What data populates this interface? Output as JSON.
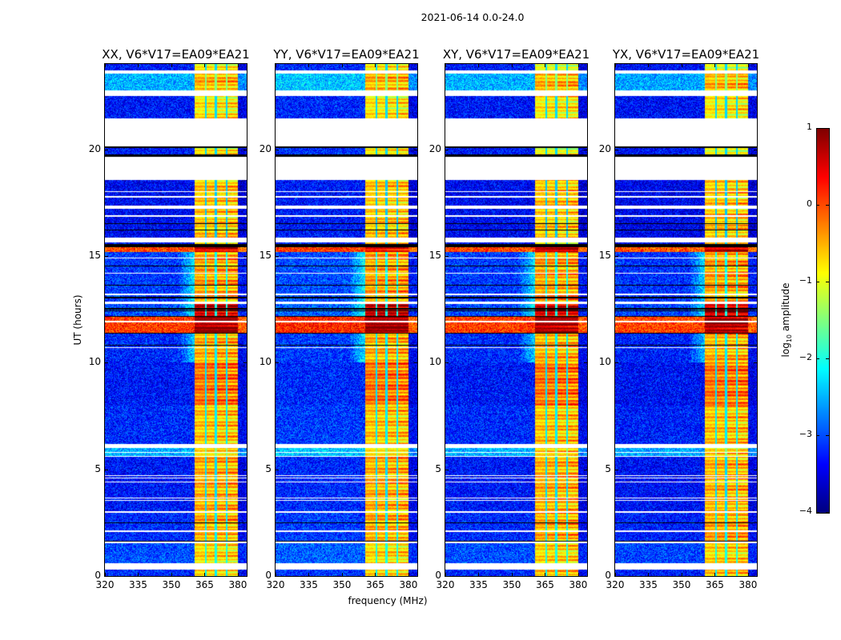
{
  "figure": {
    "suptitle": "2021-06-14 0.0-24.0",
    "ylabel": "UT (hours)",
    "xlabel": "frequency (MHz)",
    "colorbar_label_prefix": "log",
    "colorbar_label_sub": "10",
    "colorbar_label_suffix": " amplitude"
  },
  "chart_data": {
    "type": "heatmap",
    "colormap": "jet",
    "clim": [
      -4,
      1
    ],
    "colorbar_ticks": [
      "1",
      "0",
      "−1",
      "−2",
      "−3",
      "−4"
    ],
    "colorbar_tick_values": [
      1,
      0,
      -1,
      -2,
      -3,
      -4
    ],
    "xlim": [
      320,
      384
    ],
    "ylim": [
      0,
      24
    ],
    "x_ticks": [
      320,
      335,
      350,
      365,
      380
    ],
    "y_ticks": [
      0,
      5,
      10,
      15,
      20
    ],
    "panels": [
      {
        "title": "XX, V6*V17=EA09*EA21",
        "seed": 11,
        "bg_offset": 0.0
      },
      {
        "title": "YY, V6*V17=EA09*EA21",
        "seed": 23,
        "bg_offset": 0.1
      },
      {
        "title": "XY, V6*V17=EA09*EA21",
        "seed": 37,
        "bg_offset": 0.0
      },
      {
        "title": "YX, V6*V17=EA09*EA21",
        "seed": 53,
        "bg_offset": -0.05
      }
    ],
    "rfi_band_mhz": [
      360.5,
      380
    ],
    "band_notch_channels_mhz": [
      365.5,
      370,
      375
    ],
    "flagged_hours": [
      [
        23.55,
        23.7
      ],
      [
        22.5,
        22.75
      ],
      [
        20.25,
        21.45
      ],
      [
        20.15,
        20.25
      ],
      [
        18.55,
        19.65
      ],
      [
        18.0,
        18.05
      ],
      [
        17.75,
        17.8
      ],
      [
        17.2,
        17.35
      ],
      [
        16.85,
        16.9
      ],
      [
        15.65,
        15.85
      ],
      [
        14.88,
        14.93
      ],
      [
        14.18,
        14.23
      ],
      [
        13.18,
        13.23
      ],
      [
        12.75,
        12.85
      ],
      [
        11.9,
        11.95
      ],
      [
        10.68,
        10.73
      ],
      [
        6.0,
        6.2
      ],
      [
        5.78,
        5.82
      ],
      [
        5.58,
        5.62
      ],
      [
        4.68,
        4.72
      ],
      [
        4.58,
        4.62
      ],
      [
        4.38,
        4.42
      ],
      [
        3.63,
        3.67
      ],
      [
        3.53,
        3.57
      ],
      [
        2.98,
        3.04
      ],
      [
        2.08,
        2.12
      ],
      [
        1.52,
        1.6
      ]
    ],
    "zero_hours": [
      [
        0.3,
        0.6
      ],
      [
        20.05,
        20.15
      ],
      [
        19.65,
        19.75
      ],
      [
        16.5,
        16.55
      ],
      [
        16.2,
        16.25
      ],
      [
        15.5,
        15.55
      ],
      [
        15.43,
        15.47
      ],
      [
        14.5,
        14.55
      ],
      [
        14.42,
        14.45
      ],
      [
        13.6,
        13.65
      ],
      [
        13.03,
        13.07
      ],
      [
        12.5,
        12.55
      ],
      [
        12.4,
        12.44
      ],
      [
        12.15,
        12.18
      ],
      [
        11.35,
        11.4
      ],
      [
        10.8,
        10.84
      ],
      [
        2.48,
        2.52
      ],
      [
        1.6,
        1.64
      ]
    ],
    "segments": [
      {
        "hours": [
          0,
          0.3
        ],
        "background": -3.2,
        "band": -0.6
      },
      {
        "hours": [
          0.6,
          1.52
        ],
        "background": -3.0,
        "band": -0.7
      },
      {
        "hours": [
          1.6,
          3.0
        ],
        "background": -3.2,
        "band": -0.45
      },
      {
        "hours": [
          3.0,
          5.58
        ],
        "background": -3.3,
        "band": -0.5
      },
      {
        "hours": [
          5.58,
          6.0
        ],
        "background": -2.5,
        "band": -0.7
      },
      {
        "hours": [
          6.2,
          8.0
        ],
        "background": -3.2,
        "band": -0.6
      },
      {
        "hours": [
          8.0,
          10.0
        ],
        "background": -3.3,
        "band": -0.2
      },
      {
        "hours": [
          10.0,
          11.35
        ],
        "background": -3.2,
        "band": -0.5
      },
      {
        "hours": [
          11.35,
          12.15
        ],
        "background": 0.1,
        "band": 0.8
      },
      {
        "hours": [
          12.15,
          12.75
        ],
        "background": -3.0,
        "band": 0.6
      },
      {
        "hours": [
          12.75,
          15.2
        ],
        "background": -3.1,
        "band": -0.4
      },
      {
        "hours": [
          15.2,
          15.43
        ],
        "background": 0.0,
        "band": 0.5
      },
      {
        "hours": [
          15.43,
          15.65
        ],
        "background": -3.3,
        "band": -0.6
      },
      {
        "hours": [
          15.85,
          18.55
        ],
        "background": -3.4,
        "band": -0.6
      },
      {
        "hours": [
          19.65,
          20.25
        ],
        "background": -3.3,
        "band": -0.9
      },
      {
        "hours": [
          21.45,
          22.5
        ],
        "background": -3.3,
        "band": -0.8
      },
      {
        "hours": [
          22.75,
          23.55
        ],
        "background": -2.5,
        "band": -0.5
      },
      {
        "hours": [
          23.7,
          24
        ],
        "background": -3.3,
        "band": -0.9
      }
    ]
  }
}
